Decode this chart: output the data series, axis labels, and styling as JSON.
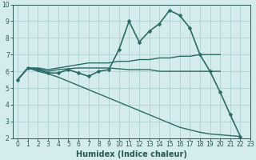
{
  "xlabel": "Humidex (Indice chaleur)",
  "xlim": [
    -0.5,
    23
  ],
  "ylim": [
    2,
    10
  ],
  "background_color": "#d4ecee",
  "grid_color": "#aed0d4",
  "line_color": "#2a6b65",
  "lines": [
    {
      "x": [
        0,
        1,
        2,
        3,
        4,
        5,
        6,
        7,
        8,
        9,
        10,
        11,
        12,
        13,
        14,
        15,
        16,
        17,
        18,
        19,
        20,
        21,
        22
      ],
      "y": [
        5.5,
        6.2,
        6.1,
        5.9,
        5.9,
        6.1,
        5.9,
        5.7,
        6.0,
        6.1,
        7.3,
        9.0,
        7.75,
        8.4,
        8.85,
        9.65,
        9.35,
        8.6,
        7.0,
        6.0,
        4.75,
        3.4,
        2.1
      ],
      "marker": "D",
      "markersize": 2.5,
      "linewidth": 1.2,
      "has_marker": true
    },
    {
      "x": [
        0,
        1,
        2,
        3,
        4,
        5,
        6,
        7,
        8,
        9,
        10,
        11,
        12,
        13,
        14,
        15,
        16,
        17,
        18,
        19,
        20
      ],
      "y": [
        5.5,
        6.2,
        6.2,
        6.1,
        6.2,
        6.3,
        6.4,
        6.5,
        6.5,
        6.5,
        6.6,
        6.6,
        6.7,
        6.7,
        6.8,
        6.8,
        6.9,
        6.9,
        7.0,
        7.0,
        7.0
      ],
      "marker": null,
      "markersize": 0,
      "linewidth": 1.0,
      "has_marker": false
    },
    {
      "x": [
        0,
        1,
        2,
        3,
        4,
        5,
        6,
        7,
        8,
        9,
        10,
        11,
        12,
        13,
        14,
        15,
        16,
        17,
        18,
        19,
        20
      ],
      "y": [
        5.5,
        6.2,
        6.15,
        6.0,
        6.1,
        6.15,
        6.2,
        6.2,
        6.2,
        6.2,
        6.15,
        6.1,
        6.1,
        6.1,
        6.0,
        6.0,
        6.0,
        6.0,
        6.0,
        6.0,
        6.0
      ],
      "marker": null,
      "markersize": 0,
      "linewidth": 1.0,
      "has_marker": false
    },
    {
      "x": [
        0,
        1,
        2,
        3,
        4,
        5,
        6,
        7,
        8,
        9,
        10,
        11,
        12,
        13,
        14,
        15,
        16,
        17,
        18,
        19,
        20,
        21,
        22
      ],
      "y": [
        5.5,
        6.2,
        6.0,
        5.85,
        5.65,
        5.4,
        5.15,
        4.9,
        4.65,
        4.4,
        4.15,
        3.9,
        3.65,
        3.4,
        3.15,
        2.9,
        2.65,
        2.5,
        2.35,
        2.25,
        2.2,
        2.15,
        2.1
      ],
      "marker": null,
      "markersize": 0,
      "linewidth": 1.0,
      "has_marker": false
    }
  ],
  "xticks": [
    0,
    1,
    2,
    3,
    4,
    5,
    6,
    7,
    8,
    9,
    10,
    11,
    12,
    13,
    14,
    15,
    16,
    17,
    18,
    19,
    20,
    21,
    22,
    23
  ],
  "yticks": [
    2,
    3,
    4,
    5,
    6,
    7,
    8,
    9,
    10
  ],
  "tick_fontsize": 5.5,
  "xlabel_fontsize": 7.0,
  "tick_label_color": "#2a5555",
  "axis_color": "#2a5555"
}
